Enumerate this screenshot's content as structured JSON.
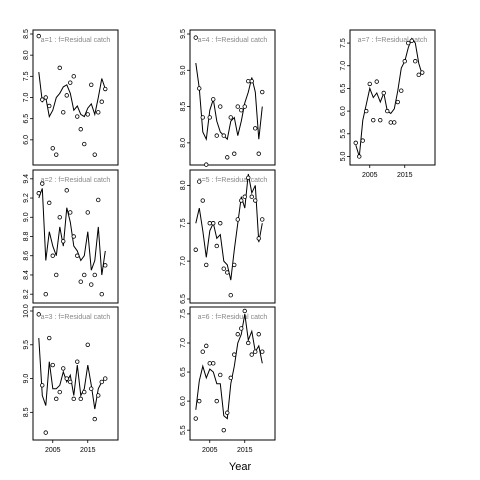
{
  "x_axis_title": "Year",
  "chart_data": [
    {
      "type": "line",
      "title": "a=1 : f=Residual catch",
      "ylim": [
        5.5,
        8.5
      ],
      "yticks": [
        6.0,
        6.5,
        7.0,
        7.5,
        8.0,
        8.5
      ],
      "xlim": [
        2000.5,
        2022.5
      ],
      "xticks": [],
      "points_x": [
        2001,
        2002,
        2003,
        2004,
        2005,
        2006,
        2007,
        2008,
        2009,
        2010,
        2011,
        2012,
        2013,
        2014,
        2015,
        2016,
        2017,
        2018,
        2019,
        2020
      ],
      "points_y": [
        8.45,
        6.95,
        7.0,
        6.8,
        5.8,
        5.65,
        7.7,
        6.65,
        7.05,
        7.35,
        7.5,
        6.55,
        6.25,
        5.9,
        6.6,
        7.3,
        5.65,
        6.65,
        6.9,
        7.2
      ],
      "line_y": [
        7.6,
        6.9,
        7.0,
        6.55,
        6.7,
        7.0,
        7.1,
        7.25,
        7.3,
        7.1,
        6.7,
        6.8,
        6.6,
        6.55,
        6.75,
        6.85,
        6.6,
        7.0,
        7.45,
        7.2
      ]
    },
    {
      "type": "line",
      "title": "a=4 : f=Residual catch",
      "ylim": [
        7.75,
        9.5
      ],
      "yticks": [
        8.0,
        8.5,
        9.0,
        9.5
      ],
      "xlim": [
        2000.5,
        2022.5
      ],
      "xticks": [],
      "points_x": [
        2001,
        2002,
        2003,
        2004,
        2005,
        2006,
        2007,
        2008,
        2009,
        2010,
        2011,
        2012,
        2013,
        2014,
        2015,
        2016,
        2017,
        2018,
        2019,
        2020
      ],
      "points_y": [
        9.45,
        8.75,
        8.35,
        7.7,
        8.35,
        8.6,
        8.1,
        8.5,
        8.1,
        7.8,
        8.35,
        7.85,
        8.5,
        8.45,
        8.5,
        8.85,
        8.85,
        8.2,
        7.85,
        8.7
      ],
      "line_y": [
        9.1,
        8.75,
        8.15,
        8.05,
        8.45,
        8.6,
        8.3,
        8.15,
        8.1,
        8.05,
        8.3,
        8.35,
        8.1,
        8.3,
        8.55,
        8.7,
        8.9,
        8.7,
        8.05,
        8.5
      ]
    },
    {
      "type": "line",
      "title": "a=7 : f=Residual catch",
      "ylim": [
        4.9,
        7.7
      ],
      "yticks": [
        5.0,
        5.5,
        6.0,
        6.5,
        7.0,
        7.5
      ],
      "xlim": [
        2000.5,
        2022.5
      ],
      "xticks": [
        2005,
        2015
      ],
      "points_x": [
        2001,
        2002,
        2003,
        2004,
        2005,
        2006,
        2007,
        2008,
        2009,
        2010,
        2011,
        2012,
        2013,
        2014,
        2015,
        2016,
        2017,
        2018,
        2019,
        2020
      ],
      "points_y": [
        5.3,
        5.0,
        5.35,
        6.0,
        6.6,
        5.8,
        6.65,
        5.8,
        6.4,
        6.0,
        5.75,
        5.75,
        6.2,
        6.45,
        7.1,
        7.5,
        7.55,
        7.1,
        6.8,
        6.85
      ],
      "line_y": [
        5.25,
        5.0,
        5.8,
        6.15,
        6.5,
        6.3,
        6.4,
        6.2,
        6.4,
        6.0,
        5.95,
        6.05,
        6.45,
        6.95,
        7.1,
        7.4,
        7.6,
        7.5,
        7.05,
        6.8
      ]
    },
    {
      "type": "line",
      "title": "a=2 : f=Residual catch",
      "ylim": [
        8.15,
        9.45
      ],
      "yticks": [
        8.2,
        8.4,
        8.6,
        8.8,
        9.0,
        9.2,
        9.4
      ],
      "xlim": [
        2000.5,
        2022.5
      ],
      "xticks": [],
      "points_x": [
        2001,
        2002,
        2003,
        2004,
        2005,
        2006,
        2007,
        2008,
        2009,
        2010,
        2011,
        2012,
        2013,
        2014,
        2015,
        2016,
        2017,
        2018,
        2019,
        2020
      ],
      "points_y": [
        9.25,
        9.35,
        8.2,
        9.15,
        8.6,
        8.4,
        9.0,
        8.75,
        9.28,
        9.05,
        8.8,
        8.6,
        8.33,
        8.4,
        9.05,
        8.3,
        8.4,
        9.18,
        8.2,
        8.5
      ],
      "line_y": [
        9.2,
        9.3,
        8.55,
        8.85,
        8.7,
        8.6,
        8.9,
        8.7,
        9.1,
        8.95,
        8.7,
        8.65,
        8.55,
        8.6,
        8.85,
        8.45,
        8.55,
        8.9,
        8.4,
        8.65
      ]
    },
    {
      "type": "line",
      "title": "a=5 : f=Residual catch",
      "ylim": [
        6.5,
        8.15
      ],
      "yticks": [
        6.5,
        7.0,
        7.5,
        8.0
      ],
      "xlim": [
        2000.5,
        2022.5
      ],
      "xticks": [],
      "points_x": [
        2001,
        2002,
        2003,
        2004,
        2005,
        2006,
        2007,
        2008,
        2009,
        2010,
        2011,
        2012,
        2013,
        2014,
        2015,
        2016,
        2017,
        2018,
        2019,
        2020
      ],
      "points_y": [
        7.15,
        8.05,
        7.8,
        6.95,
        7.5,
        7.5,
        7.2,
        7.5,
        6.9,
        6.85,
        6.55,
        6.95,
        7.55,
        7.8,
        7.85,
        8.1,
        7.85,
        7.8,
        7.3,
        7.55
      ],
      "line_y": [
        7.5,
        7.7,
        7.4,
        7.05,
        7.4,
        7.5,
        7.3,
        7.35,
        7.0,
        6.95,
        6.75,
        7.15,
        7.5,
        7.85,
        7.7,
        8.15,
        7.9,
        8.0,
        7.25,
        7.5
      ]
    },
    {
      "type": "line",
      "title": "a=3 : f=Residual catch",
      "ylim": [
        8.15,
        10.0
      ],
      "yticks": [
        8.5,
        9.0,
        9.5,
        10.0
      ],
      "xlim": [
        2000.5,
        2022.5
      ],
      "xticks": [
        2005,
        2015
      ],
      "points_x": [
        2001,
        2002,
        2003,
        2004,
        2005,
        2006,
        2007,
        2008,
        2009,
        2010,
        2011,
        2012,
        2013,
        2014,
        2015,
        2016,
        2017,
        2018,
        2019,
        2020
      ],
      "points_y": [
        9.95,
        8.9,
        8.2,
        9.6,
        9.2,
        8.7,
        8.8,
        9.15,
        9.0,
        8.95,
        8.7,
        9.25,
        8.7,
        8.8,
        9.5,
        8.85,
        8.4,
        8.75,
        8.95,
        9.0
      ],
      "line_y": [
        9.6,
        8.75,
        8.6,
        9.25,
        8.85,
        8.85,
        8.9,
        9.1,
        8.95,
        9.05,
        8.75,
        9.2,
        8.75,
        8.85,
        9.2,
        8.9,
        8.55,
        8.85,
        8.95,
        9.0
      ]
    },
    {
      "type": "line",
      "title": "a=6 : f=Residual catch",
      "ylim": [
        5.4,
        7.55
      ],
      "yticks": [
        5.5,
        6.0,
        6.5,
        7.0,
        7.5
      ],
      "xlim": [
        2000.5,
        2022.5
      ],
      "xticks": [
        2005,
        2015
      ],
      "points_x": [
        2001,
        2002,
        2003,
        2004,
        2005,
        2006,
        2007,
        2008,
        2009,
        2010,
        2011,
        2012,
        2013,
        2014,
        2015,
        2016,
        2017,
        2018,
        2019,
        2020
      ],
      "points_y": [
        5.7,
        6.0,
        6.85,
        6.95,
        6.65,
        6.65,
        6.0,
        6.45,
        5.5,
        5.8,
        6.4,
        6.8,
        7.15,
        7.25,
        7.55,
        7.0,
        6.8,
        6.85,
        7.15,
        6.85
      ],
      "line_y": [
        5.85,
        6.35,
        6.6,
        6.4,
        6.55,
        6.5,
        6.3,
        6.3,
        5.75,
        5.7,
        6.3,
        6.6,
        7.0,
        7.15,
        7.5,
        7.05,
        7.2,
        6.85,
        6.95,
        6.65
      ]
    }
  ]
}
